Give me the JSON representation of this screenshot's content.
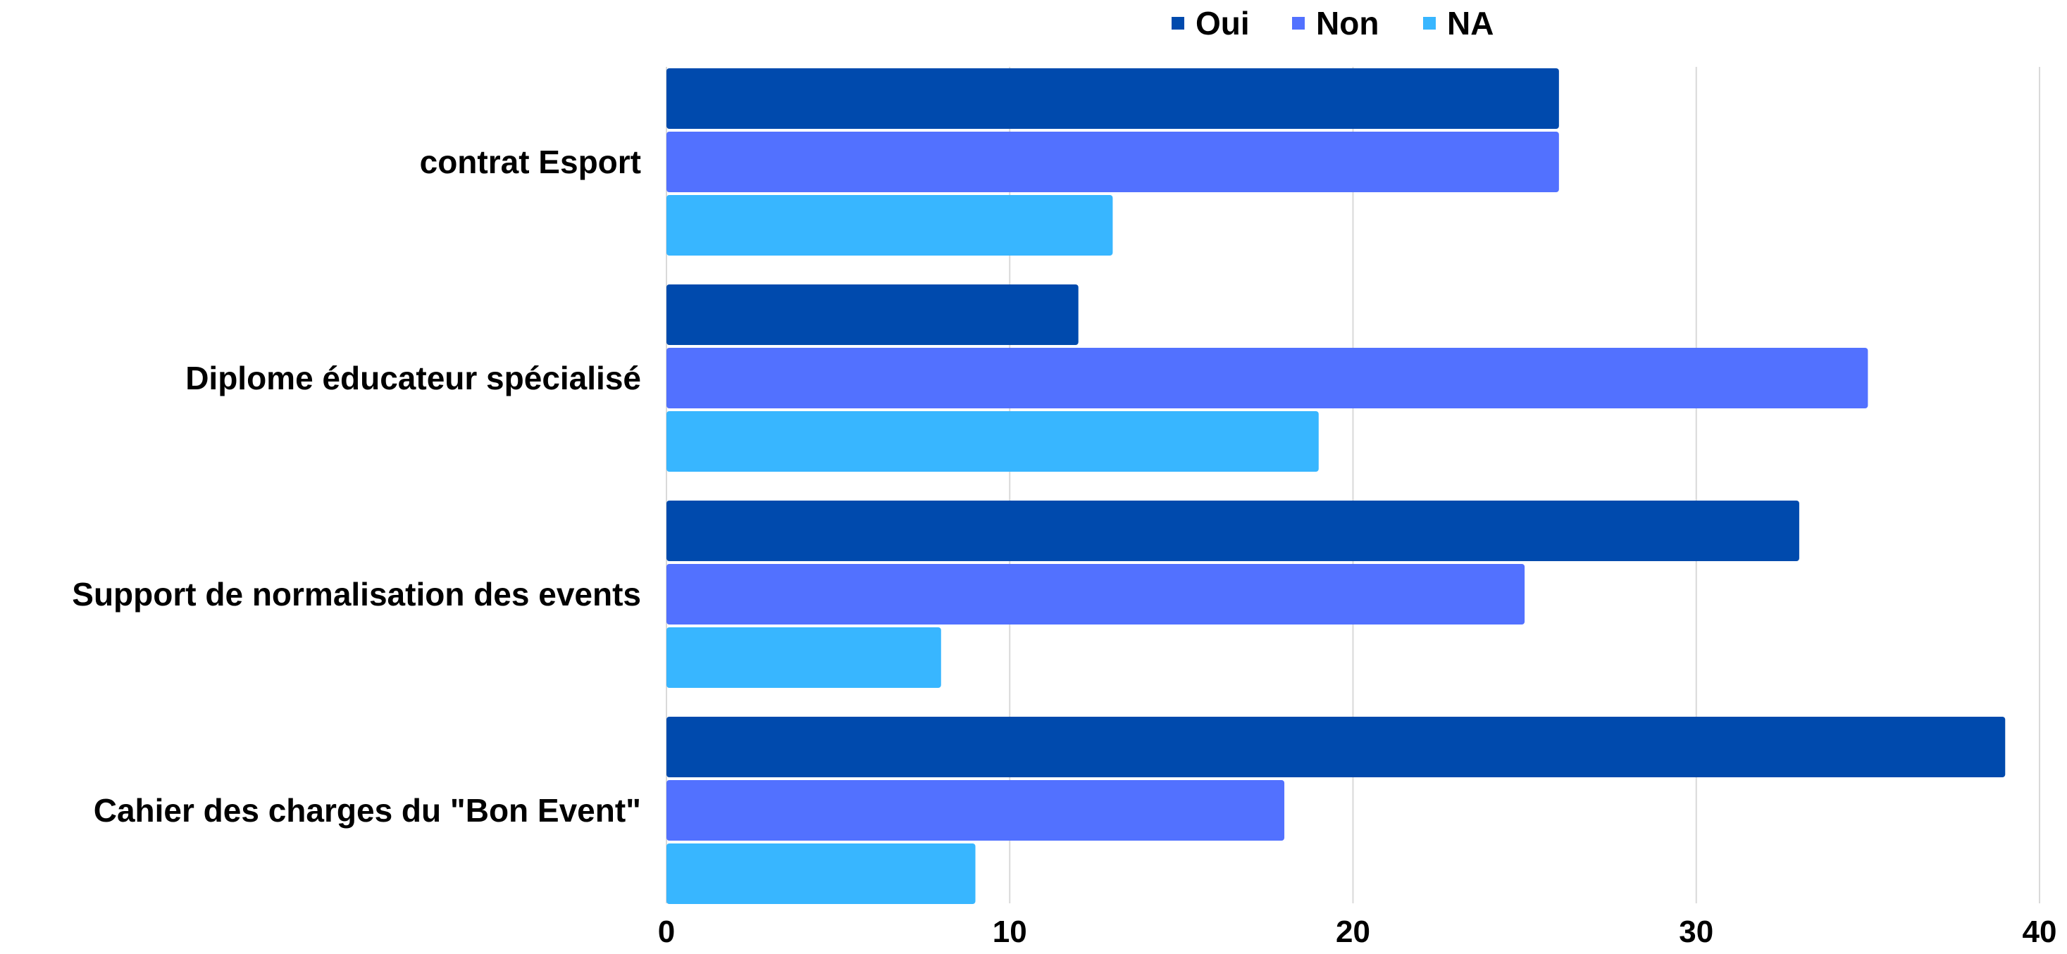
{
  "chart_data": {
    "type": "bar",
    "orientation": "horizontal",
    "categories": [
      "contrat Esport",
      "Diplome éducateur spécialisé",
      "Support de normalisation des events",
      "Cahier des charges du \"Bon Event\""
    ],
    "series": [
      {
        "name": "Oui",
        "color": "#004aad",
        "values": [
          26,
          12,
          33,
          39
        ]
      },
      {
        "name": "Non",
        "color": "#5271ff",
        "values": [
          26,
          35,
          25,
          18
        ]
      },
      {
        "name": "NA",
        "color": "#38b6ff",
        "values": [
          13,
          19,
          8,
          9
        ]
      }
    ],
    "xlim": [
      0,
      40
    ],
    "x_ticks": [
      "0",
      "10",
      "20",
      "30",
      "40"
    ],
    "grid": "vertical",
    "legend_position": "top-center",
    "title": "",
    "xlabel": "",
    "ylabel": ""
  }
}
